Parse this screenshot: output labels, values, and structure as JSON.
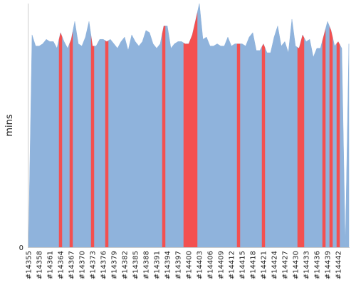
{
  "chart_data": {
    "type": "area",
    "ylabel": "mins",
    "y_ticks": [
      "0"
    ],
    "x_tick_labels": [
      "#14355",
      "#14358",
      "#14361",
      "#14364",
      "#14367",
      "#14370",
      "#14373",
      "#14376",
      "#14379",
      "#14382",
      "#14385",
      "#14388",
      "#14391",
      "#14394",
      "#14397",
      "#14400",
      "#14403",
      "#14406",
      "#14409",
      "#14412",
      "#14415",
      "#14418",
      "#14421",
      "#14424",
      "#14427",
      "#14430",
      "#14433",
      "#14436",
      "#14439",
      "#14442"
    ],
    "x": {
      "start": 14355,
      "end": 14443
    },
    "ylim": [
      0,
      109
    ],
    "series": [
      {
        "values": [
          0,
          95,
          90,
          90,
          91,
          93,
          92,
          92,
          89,
          96,
          92,
          89,
          93,
          101,
          91,
          90,
          94,
          101,
          90,
          90,
          93,
          93,
          92,
          93,
          91,
          89,
          92,
          94,
          88,
          95,
          92,
          90,
          92,
          97,
          96,
          91,
          89,
          91,
          99,
          99,
          89,
          91,
          92,
          92,
          91,
          91,
          95,
          102,
          109,
          93,
          94,
          90,
          90,
          91,
          90,
          90,
          94,
          90,
          91,
          91,
          91,
          90,
          94,
          96,
          88,
          88,
          91,
          87,
          87,
          94,
          99,
          90,
          92,
          87,
          102,
          90,
          89,
          95,
          92,
          93,
          85,
          89,
          89,
          95,
          101,
          97,
          90,
          92,
          89,
          0,
          91
        ]
      }
    ],
    "failed_builds": [
      14364,
      14367,
      14373,
      14377,
      14393,
      14399,
      14400,
      14401,
      14402,
      14414,
      14421,
      14431,
      14432,
      14438,
      14440,
      14442
    ],
    "colors": {
      "area": "#8fb3dc",
      "failed": "#f35050",
      "axis": "#cccccc",
      "text": "#222222"
    }
  }
}
